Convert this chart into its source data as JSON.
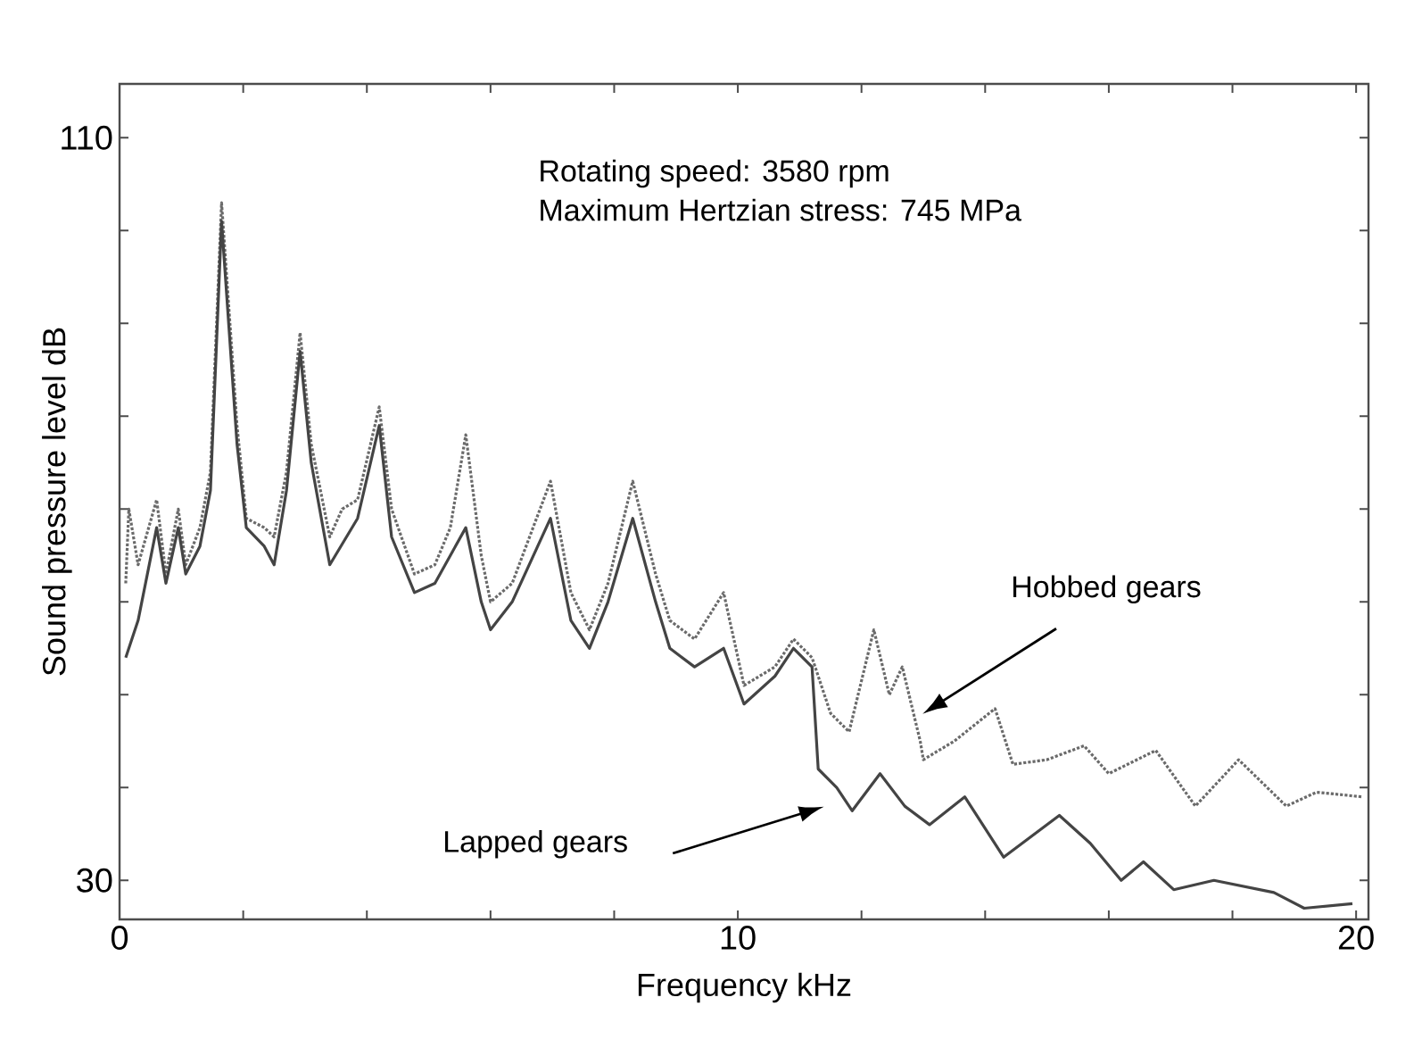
{
  "chart_data": {
    "type": "line",
    "xlabel": "Frequency kHz",
    "ylabel": "Sound pressure level dB",
    "xlim": [
      0,
      20.2
    ],
    "ylim": [
      25.8,
      115.8
    ],
    "xticks": [
      0,
      {
        "value": 2,
        "label": null
      },
      {
        "value": 4,
        "label": null
      },
      {
        "value": 6,
        "label": null
      },
      {
        "value": 8,
        "label": null
      },
      10,
      {
        "value": 12,
        "label": null
      },
      {
        "value": 14,
        "label": null
      },
      {
        "value": 16,
        "label": null
      },
      {
        "value": 18,
        "label": null
      },
      20
    ],
    "yticks": [
      30,
      {
        "value": 40,
        "label": null
      },
      {
        "value": 50,
        "label": null
      },
      {
        "value": 60,
        "label": null
      },
      {
        "value": 70,
        "label": null
      },
      {
        "value": 80,
        "label": null
      },
      {
        "value": 90,
        "label": null
      },
      {
        "value": 100,
        "label": null
      },
      110
    ],
    "grid": false,
    "marker": "none",
    "series": [
      {
        "color": "#6a6a6a",
        "line_style": "dotted",
        "x": [
          0.1,
          0.15,
          0.3,
          0.6,
          0.75,
          0.95,
          1.07,
          1.3,
          1.47,
          1.65,
          1.9,
          2.05,
          2.34,
          2.5,
          2.7,
          2.92,
          3.1,
          3.4,
          3.6,
          3.85,
          4.2,
          4.4,
          4.77,
          5.1,
          5.35,
          5.6,
          5.85,
          6.0,
          6.35,
          6.97,
          7.3,
          7.6,
          7.9,
          8.3,
          8.67,
          8.9,
          9.3,
          9.77,
          10.1,
          10.6,
          10.9,
          11.2,
          11.5,
          11.8,
          12.2,
          12.45,
          12.66,
          12.95,
          13.0,
          13.5,
          14.16,
          14.45,
          15.0,
          15.6,
          16.0,
          16.76,
          17.4,
          18.1,
          18.87,
          19.36,
          20.1
        ],
        "values": [
          62,
          70,
          64,
          71,
          63,
          70,
          64,
          68,
          74,
          103,
          79,
          69,
          68,
          67,
          74,
          89,
          77,
          67,
          70,
          71,
          81,
          70,
          63,
          64,
          68,
          78,
          65,
          60,
          62,
          73,
          61,
          57,
          62,
          73,
          63,
          58,
          56,
          61,
          51,
          53,
          56,
          54,
          48,
          46,
          57,
          50,
          53,
          45,
          43,
          45,
          48.5,
          42.5,
          43,
          44.5,
          41.5,
          44,
          38,
          43,
          38,
          39.5,
          39
        ]
      },
      {
        "color": "#444444",
        "line_style": "solid",
        "x": [
          0.1,
          0.3,
          0.6,
          0.75,
          0.95,
          1.07,
          1.3,
          1.47,
          1.65,
          1.9,
          2.05,
          2.34,
          2.5,
          2.7,
          2.92,
          3.1,
          3.4,
          3.85,
          4.2,
          4.4,
          4.77,
          5.1,
          5.6,
          5.85,
          6.0,
          6.35,
          6.97,
          7.3,
          7.6,
          7.9,
          8.3,
          8.67,
          8.9,
          9.3,
          9.77,
          10.1,
          10.6,
          10.9,
          11.2,
          11.3,
          11.6,
          11.85,
          12.3,
          12.7,
          13.1,
          13.67,
          14.3,
          15.2,
          15.7,
          16.2,
          16.56,
          17.05,
          17.7,
          18.67,
          19.16,
          19.94
        ],
        "values": [
          54,
          58,
          68,
          62,
          68,
          63,
          66,
          72,
          101,
          77,
          68,
          66,
          64,
          72,
          87,
          75,
          64,
          69,
          79,
          67,
          61,
          62,
          68,
          60,
          57,
          60,
          69,
          58,
          55,
          60,
          69,
          60,
          55,
          53,
          55,
          49,
          52,
          55,
          53,
          42,
          40,
          37.5,
          41.5,
          38,
          36,
          39,
          32.5,
          37,
          34,
          30,
          32,
          29,
          30,
          28.7,
          27,
          27.5
        ]
      }
    ],
    "annotations": [
      "Rotating speed: 3580 rpm",
      "Maximum Hertzian stress: 745 MPa",
      "Hobbed gears",
      "Lapped gears"
    ]
  }
}
